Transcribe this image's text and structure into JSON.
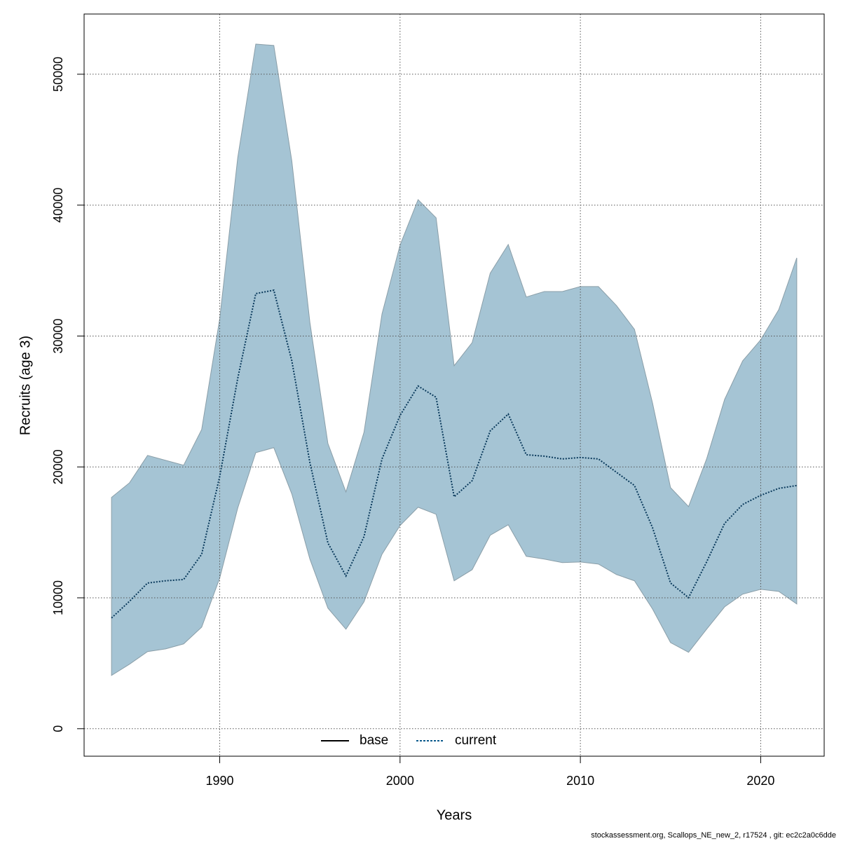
{
  "chart_data": {
    "type": "band-line",
    "xlabel": "Years",
    "ylabel": "Recruits (age 3)",
    "footer": "stockassessment.org, Scallops_NE_new_2, r17524 , git: ec2c2a0c6dde",
    "x": [
      1984,
      1985,
      1986,
      1987,
      1988,
      1989,
      1990,
      1991,
      1992,
      1993,
      1994,
      1995,
      1996,
      1997,
      1998,
      1999,
      2000,
      2001,
      2002,
      2003,
      2004,
      2005,
      2006,
      2007,
      2008,
      2009,
      2010,
      2011,
      2012,
      2013,
      2014,
      2015,
      2016,
      2017,
      2018,
      2019,
      2020,
      2021,
      2022
    ],
    "series": [
      {
        "name": "current",
        "color": "#0a3a5c",
        "values": [
          8460,
          9740,
          11130,
          11300,
          11400,
          13330,
          19270,
          26770,
          33240,
          33500,
          28100,
          20340,
          14190,
          11670,
          14670,
          20610,
          23930,
          26180,
          25320,
          17720,
          18950,
          22750,
          24040,
          20930,
          20820,
          20610,
          20720,
          20610,
          19590,
          18580,
          15360,
          11130,
          10010,
          12740,
          15690,
          17130,
          17830,
          18360,
          18580
        ]
      }
    ],
    "band": {
      "color": "#a5c4d4",
      "upper": [
        17670,
        18790,
        20880,
        20500,
        20130,
        22860,
        31320,
        43630,
        52300,
        52200,
        43360,
        31050,
        21790,
        18090,
        22640,
        31690,
        36940,
        40420,
        39030,
        27730,
        29500,
        34800,
        36990,
        32980,
        33400,
        33400,
        33780,
        33780,
        32330,
        30510,
        24890,
        18420,
        16970,
        20610,
        25160,
        28100,
        29710,
        32010,
        35970
      ],
      "lower": [
        4070,
        4930,
        5890,
        6100,
        6480,
        7760,
        11510,
        16860,
        21090,
        21470,
        17930,
        12960,
        9210,
        7600,
        9690,
        13330,
        15520,
        16920,
        16380,
        11300,
        12150,
        14780,
        15580,
        13170,
        12960,
        12690,
        12740,
        12580,
        11780,
        11300,
        9150,
        6580,
        5840,
        7600,
        9310,
        10280,
        10650,
        10490,
        9530
      ]
    },
    "legend": [
      {
        "label": "base",
        "color": "#000000",
        "dash": "solid"
      },
      {
        "label": "current",
        "color": "#0a5a8c",
        "dash": "dotted"
      }
    ],
    "xlim": [
      1982.48,
      2023.52
    ],
    "xticks": [
      1990,
      2000,
      2010,
      2020
    ],
    "ylim": [
      -2100,
      54600
    ],
    "yticks": [
      0,
      10000,
      20000,
      30000,
      40000,
      50000
    ],
    "grid": true
  }
}
